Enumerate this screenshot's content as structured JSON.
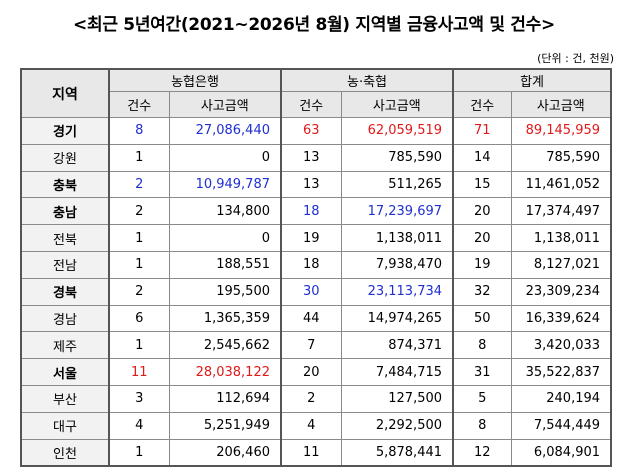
{
  "title": "<최근 5년여간(2021~2026년 8월) 지역별 금융사고액 및 건수>",
  "unit": "(단위 : 건, 천원)",
  "headers": {
    "region": "지역",
    "group1": "농협은행",
    "group2": "농·축협",
    "group3": "합계",
    "count": "건수",
    "amount": "사고금액"
  },
  "colors": {
    "blue": "#1f2fd1",
    "red": "#e01919"
  },
  "rows": [
    {
      "region": "경기",
      "bold": true,
      "c1": "8",
      "a1": "27,086,440",
      "c2": "63",
      "a2": "62,059,519",
      "c3": "71",
      "a3": "89,145,959",
      "h1": "blue",
      "h2": "red",
      "h3": "red"
    },
    {
      "region": "강원",
      "bold": false,
      "c1": "1",
      "a1": "0",
      "c2": "13",
      "a2": "785,590",
      "c3": "14",
      "a3": "785,590",
      "h1": "",
      "h2": "",
      "h3": ""
    },
    {
      "region": "충북",
      "bold": true,
      "c1": "2",
      "a1": "10,949,787",
      "c2": "13",
      "a2": "511,265",
      "c3": "15",
      "a3": "11,461,052",
      "h1": "blue",
      "h2": "",
      "h3": ""
    },
    {
      "region": "충남",
      "bold": true,
      "c1": "2",
      "a1": "134,800",
      "c2": "18",
      "a2": "17,239,697",
      "c3": "20",
      "a3": "17,374,497",
      "h1": "",
      "h2": "blue",
      "h3": ""
    },
    {
      "region": "전북",
      "bold": false,
      "c1": "1",
      "a1": "0",
      "c2": "19",
      "a2": "1,138,011",
      "c3": "20",
      "a3": "1,138,011",
      "h1": "",
      "h2": "",
      "h3": ""
    },
    {
      "region": "전남",
      "bold": false,
      "c1": "1",
      "a1": "188,551",
      "c2": "18",
      "a2": "7,938,470",
      "c3": "19",
      "a3": "8,127,021",
      "h1": "",
      "h2": "",
      "h3": ""
    },
    {
      "region": "경북",
      "bold": true,
      "c1": "2",
      "a1": "195,500",
      "c2": "30",
      "a2": "23,113,734",
      "c3": "32",
      "a3": "23,309,234",
      "h1": "",
      "h2": "blue",
      "h3": ""
    },
    {
      "region": "경남",
      "bold": false,
      "c1": "6",
      "a1": "1,365,359",
      "c2": "44",
      "a2": "14,974,265",
      "c3": "50",
      "a3": "16,339,624",
      "h1": "",
      "h2": "",
      "h3": ""
    },
    {
      "region": "제주",
      "bold": false,
      "c1": "1",
      "a1": "2,545,662",
      "c2": "7",
      "a2": "874,371",
      "c3": "8",
      "a3": "3,420,033",
      "h1": "",
      "h2": "",
      "h3": ""
    },
    {
      "region": "서울",
      "bold": true,
      "c1": "11",
      "a1": "28,038,122",
      "c2": "20",
      "a2": "7,484,715",
      "c3": "31",
      "a3": "35,522,837",
      "h1": "red",
      "h2": "",
      "h3": ""
    },
    {
      "region": "부산",
      "bold": false,
      "c1": "3",
      "a1": "112,694",
      "c2": "2",
      "a2": "127,500",
      "c3": "5",
      "a3": "240,194",
      "h1": "",
      "h2": "",
      "h3": ""
    },
    {
      "region": "대구",
      "bold": false,
      "c1": "4",
      "a1": "5,251,949",
      "c2": "4",
      "a2": "2,292,500",
      "c3": "8",
      "a3": "7,544,449",
      "h1": "",
      "h2": "",
      "h3": ""
    },
    {
      "region": "인천",
      "bold": false,
      "c1": "1",
      "a1": "206,460",
      "c2": "11",
      "a2": "5,878,441",
      "c3": "12",
      "a3": "6,084,901",
      "h1": "",
      "h2": "",
      "h3": ""
    }
  ]
}
